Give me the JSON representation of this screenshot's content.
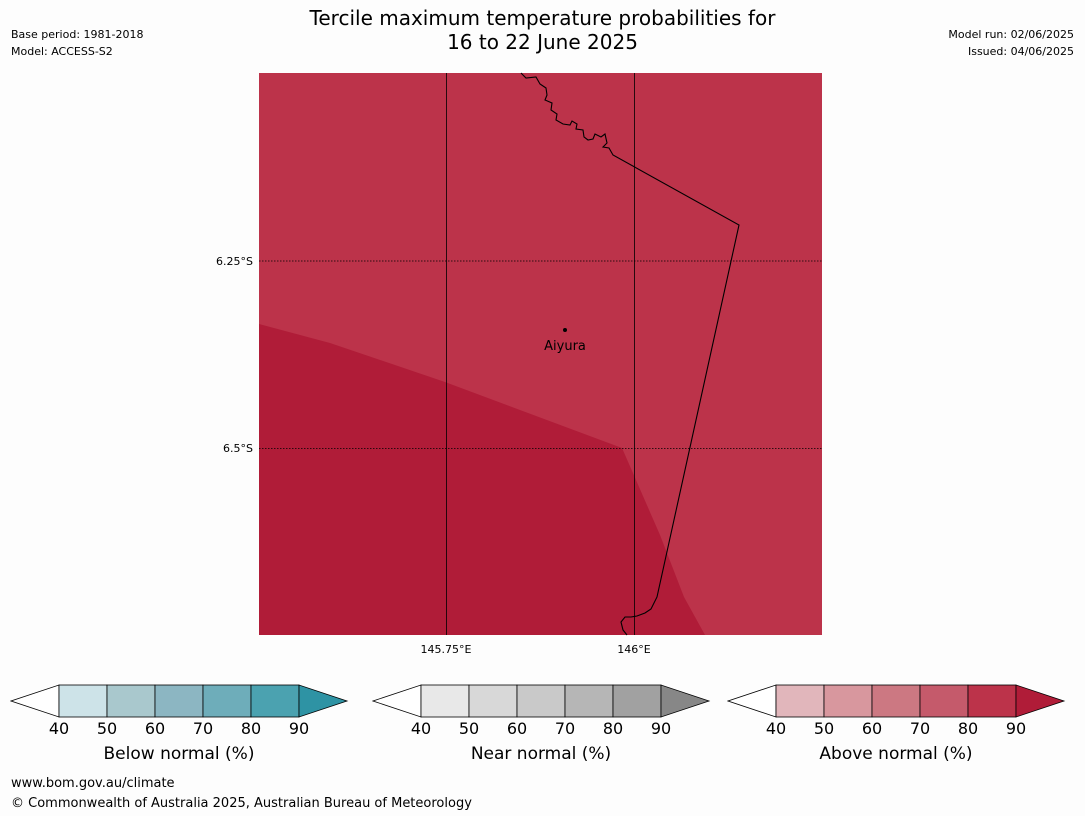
{
  "header": {
    "title_line1": "Tercile maximum temperature probabilities for",
    "title_line2": "16 to 22 June 2025",
    "base_period": "Base period: 1981-2018",
    "model": "Model: ACCESS-S2",
    "model_run": "Model run: 02/06/2025",
    "issued": "Issued: 04/06/2025"
  },
  "map": {
    "place_label": "Aiyura",
    "lat_labels": [
      "6.25°S",
      "6.5°S"
    ],
    "lon_labels": [
      "145.75°E",
      "146°E"
    ],
    "regions": [
      {
        "category": "Above normal",
        "range": "80-90",
        "color": "#bc334a"
      },
      {
        "category": "Above normal",
        "range": "90+",
        "color": "#b01c38"
      }
    ]
  },
  "legends": [
    {
      "title": "Below normal (%)",
      "ticks": [
        "40",
        "50",
        "60",
        "70",
        "80",
        "90"
      ],
      "colors": [
        "#ffffff",
        "#cde3e8",
        "#a9c8cd",
        "#8cb6c2",
        "#6eadba",
        "#4ba2b0",
        "#2e93a4"
      ]
    },
    {
      "title": "Near normal (%)",
      "ticks": [
        "40",
        "50",
        "60",
        "70",
        "80",
        "90"
      ],
      "colors": [
        "#ffffff",
        "#e8e8e8",
        "#d8d8d8",
        "#c9c9c9",
        "#b6b6b6",
        "#a1a1a1",
        "#878787"
      ]
    },
    {
      "title": "Above normal (%)",
      "ticks": [
        "40",
        "50",
        "60",
        "70",
        "80",
        "90"
      ],
      "colors": [
        "#ffffff",
        "#e1b6bb",
        "#d8979e",
        "#cc7882",
        "#c55a6b",
        "#bc334a",
        "#b01c38"
      ]
    }
  ],
  "footer": {
    "url": "www.bom.gov.au/climate",
    "copyright": "© Commonwealth of Australia 2025, Australian Bureau of Meteorology"
  }
}
